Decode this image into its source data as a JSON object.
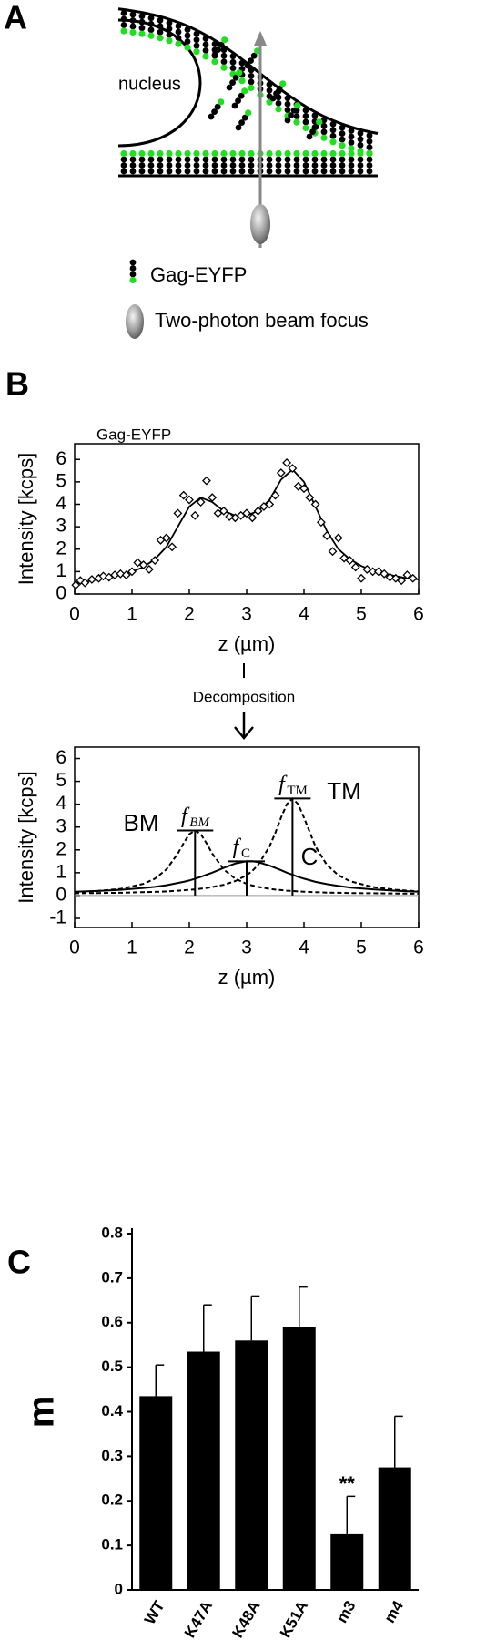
{
  "diagram": {
    "label": "A",
    "nucleus": "nucleus",
    "legend": [
      "Gag-EYFP",
      "Two-photon beam focus"
    ]
  },
  "chart_data": [
    {
      "type": "scatter",
      "panel": "B",
      "annotation": "Gag-EYFP",
      "x_label": "z (µm)",
      "y_label": "Intensity [kcps]",
      "xlim": [
        0,
        6
      ],
      "ylim": [
        0,
        6.7
      ],
      "xticks": [
        0,
        1,
        2,
        3,
        4,
        5,
        6
      ],
      "yticks": [
        0,
        1,
        2,
        3,
        4,
        5,
        6
      ],
      "x": [
        0.02,
        0.1,
        0.18,
        0.3,
        0.42,
        0.5,
        0.6,
        0.7,
        0.8,
        0.9,
        1.0,
        1.1,
        1.2,
        1.3,
        1.4,
        1.5,
        1.6,
        1.7,
        1.8,
        1.9,
        2.0,
        2.1,
        2.2,
        2.3,
        2.4,
        2.5,
        2.6,
        2.7,
        2.8,
        2.9,
        3.0,
        3.1,
        3.2,
        3.3,
        3.4,
        3.5,
        3.6,
        3.7,
        3.8,
        3.9,
        4.0,
        4.1,
        4.2,
        4.3,
        4.4,
        4.5,
        4.6,
        4.7,
        4.8,
        4.9,
        5.0,
        5.1,
        5.2,
        5.3,
        5.4,
        5.5,
        5.6,
        5.7,
        5.8,
        5.9
      ],
      "values": [
        0.4,
        0.6,
        0.5,
        0.65,
        0.7,
        0.8,
        0.75,
        0.85,
        0.9,
        0.85,
        1.0,
        1.4,
        1.3,
        1.1,
        1.5,
        2.4,
        2.5,
        2.1,
        3.6,
        4.4,
        4.2,
        3.5,
        4.1,
        5.05,
        4.3,
        3.6,
        3.7,
        3.45,
        3.4,
        3.5,
        3.6,
        3.4,
        3.7,
        3.9,
        4.0,
        4.4,
        5.4,
        5.85,
        5.6,
        4.8,
        4.7,
        4.3,
        4.0,
        3.2,
        2.6,
        1.9,
        2.5,
        1.6,
        1.5,
        1.2,
        0.7,
        1.1,
        1.0,
        1.0,
        0.9,
        0.75,
        0.7,
        0.6,
        0.85,
        0.7
      ],
      "marker": "diamond",
      "color": "#000000",
      "fit": {
        "x": [
          0,
          0.2,
          0.4,
          0.6,
          0.8,
          1.0,
          1.2,
          1.4,
          1.6,
          1.8,
          2.0,
          2.2,
          2.4,
          2.6,
          2.8,
          3.0,
          3.2,
          3.4,
          3.6,
          3.8,
          4.0,
          4.2,
          4.4,
          4.6,
          4.8,
          5.0,
          5.2,
          5.4,
          5.6,
          5.8,
          6.0
        ],
        "values": [
          0.45,
          0.55,
          0.65,
          0.75,
          0.85,
          1.0,
          1.2,
          1.55,
          2.1,
          3.0,
          3.9,
          4.3,
          4.1,
          3.7,
          3.5,
          3.5,
          3.7,
          4.2,
          5.1,
          5.55,
          5.0,
          3.9,
          2.8,
          2.0,
          1.55,
          1.25,
          1.05,
          0.9,
          0.8,
          0.7,
          0.65
        ]
      }
    },
    {
      "type": "line",
      "annotation": "Decomposition",
      "x_label": "z (µm)",
      "y_label": "Intensity [kcps]",
      "xlim": [
        0,
        6
      ],
      "ylim": [
        -1.4,
        6.5
      ],
      "xticks": [
        0,
        1,
        2,
        3,
        4,
        5,
        6
      ],
      "yticks": [
        -1,
        0,
        1,
        2,
        3,
        4,
        5,
        6
      ],
      "x": [
        0,
        0.4,
        0.8,
        1.2,
        1.4,
        1.6,
        1.8,
        1.9,
        2.0,
        2.1,
        2.2,
        2.3,
        2.4,
        2.6,
        2.8,
        3.0,
        3.1,
        3.2,
        3.4,
        3.5,
        3.6,
        3.7,
        3.8,
        3.9,
        4.0,
        4.2,
        4.4,
        4.6,
        4.8,
        5.2,
        5.6,
        6.0
      ],
      "series": [
        {
          "name": "BM",
          "color": "#000000",
          "line_style": "dashed",
          "peak_label": {
            "text": "f",
            "sub": "BM"
          },
          "values": [
            0.15,
            0.2,
            0.29,
            0.51,
            0.74,
            1.14,
            1.84,
            2.29,
            2.69,
            2.85,
            2.69,
            2.29,
            1.84,
            1.14,
            0.74,
            0.51,
            0.44,
            0.38,
            0.29,
            0.26,
            0.24,
            0.21,
            0.2,
            0.18,
            0.17,
            0.15,
            0.13,
            0.12,
            0.11,
            0.1,
            0.09,
            0.08
          ]
        },
        {
          "name": "C",
          "color": "#000000",
          "line_style": "solid",
          "peak_label": {
            "text": "f",
            "sub": "C"
          },
          "values": [
            0.17,
            0.2,
            0.25,
            0.33,
            0.38,
            0.45,
            0.55,
            0.6,
            0.66,
            0.74,
            0.82,
            0.91,
            1.0,
            1.21,
            1.4,
            1.5,
            1.5,
            1.46,
            1.31,
            1.21,
            1.11,
            1.0,
            0.91,
            0.82,
            0.74,
            0.6,
            0.5,
            0.42,
            0.35,
            0.27,
            0.21,
            0.17
          ]
        },
        {
          "name": "TM",
          "color": "#000000",
          "line_style": "dashed",
          "peak_label": {
            "text": "f",
            "sub": "TM"
          },
          "values": [
            0.1,
            0.11,
            0.12,
            0.15,
            0.16,
            0.18,
            0.21,
            0.23,
            0.25,
            0.27,
            0.3,
            0.33,
            0.37,
            0.47,
            0.63,
            0.89,
            1.08,
            1.34,
            2.15,
            2.74,
            3.41,
            4.0,
            4.25,
            4.0,
            3.41,
            2.15,
            1.34,
            0.89,
            0.63,
            0.37,
            0.25,
            0.18
          ]
        }
      ]
    },
    {
      "type": "bar",
      "panel": "C",
      "y_label": "m",
      "categories": [
        "WT",
        "K47A",
        "K48A",
        "K51A",
        "m3",
        "m4"
      ],
      "values": [
        0.435,
        0.535,
        0.56,
        0.59,
        0.125,
        0.275
      ],
      "errors": [
        0.07,
        0.105,
        0.1,
        0.09,
        0.085,
        0.115
      ],
      "value_annotations": [
        null,
        null,
        null,
        null,
        "**",
        null
      ],
      "color": "#000000",
      "ylim": [
        0,
        0.8
      ],
      "yticks": [
        0,
        0.1,
        0.2,
        0.3,
        0.4,
        0.5,
        0.6,
        0.7,
        0.8
      ]
    }
  ]
}
